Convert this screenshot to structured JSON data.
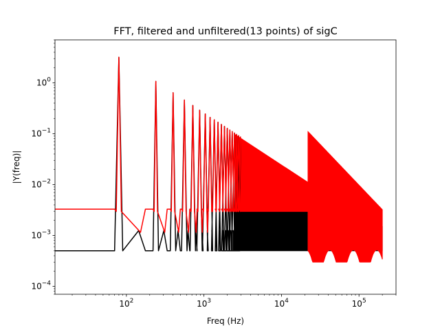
{
  "chart_data": {
    "type": "line",
    "title": "FFT, filtered and unfiltered(13 points) of sigC",
    "xlabel": "Freq (Hz)",
    "ylabel": "|Y(freq)|",
    "xscale": "log",
    "yscale": "log",
    "xlim": [
      12,
      300000
    ],
    "ylim": [
      7e-05,
      7
    ],
    "grid": false,
    "x_ticks": [
      {
        "value": 100,
        "base": "10",
        "exp": "2"
      },
      {
        "value": 1000,
        "base": "10",
        "exp": "3"
      },
      {
        "value": 10000,
        "base": "10",
        "exp": "4"
      },
      {
        "value": 100000,
        "base": "10",
        "exp": "5"
      }
    ],
    "y_ticks": [
      {
        "value": 0.0001,
        "base": "10",
        "exp": "−4"
      },
      {
        "value": 0.001,
        "base": "10",
        "exp": "−3"
      },
      {
        "value": 0.01,
        "base": "10",
        "exp": "−2"
      },
      {
        "value": 0.1,
        "base": "10",
        "exp": "−1"
      },
      {
        "value": 1,
        "base": "10",
        "exp": "0"
      }
    ],
    "fundamental_hz": 80,
    "series": [
      {
        "color": "#000000",
        "baseline": 0.0005,
        "noise_ceiling": 0.0015,
        "harmonic_peaks": [
          3.2,
          1.07,
          0.64,
          0.46,
          0.36,
          0.29,
          0.245,
          0.21
        ],
        "x_end": 200000
      },
      {
        "color": "#ff0000",
        "baseline": 0.0033,
        "floor": 0.0003,
        "harmonic_peaks": [
          3.2,
          1.07,
          0.64,
          0.46,
          0.36,
          0.29,
          0.245,
          0.21
        ],
        "x_end": 200000
      }
    ]
  }
}
